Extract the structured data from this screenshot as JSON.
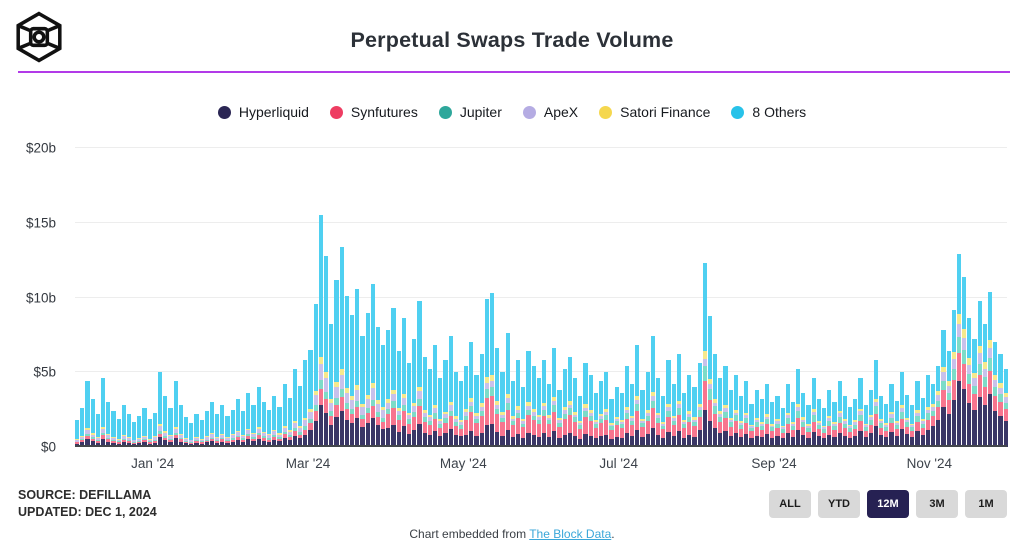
{
  "header": {
    "title": "Perpetual Swaps Trade Volume",
    "brand_logo": "the-block-cube-logo",
    "divider_color": "#b23ae8"
  },
  "legend": [
    {
      "key": "hyperliquid",
      "label": "Hyperliquid",
      "color": "#2b2654",
      "bar_color": "#3a3666"
    },
    {
      "key": "synfutures",
      "label": "Synfutures",
      "color": "#ee3d62",
      "bar_color": "#f7758e"
    },
    {
      "key": "jupiter",
      "label": "Jupiter",
      "color": "#2ea79b",
      "bar_color": "#7ddcc8"
    },
    {
      "key": "apex",
      "label": "ApeX",
      "color": "#b5ace3",
      "bar_color": "#c8c1eb"
    },
    {
      "key": "satori",
      "label": "Satori Finance",
      "color": "#f5d74e",
      "bar_color": "#f6e98c"
    },
    {
      "key": "others",
      "label": "8 Others",
      "color": "#28c2e9",
      "bar_color": "#4fd0f1"
    }
  ],
  "chart_data": {
    "type": "bar",
    "stacked": true,
    "title": "Perpetual Swaps Trade Volume",
    "unit": "USD billions per day",
    "granularity": "daily (approximated here as 15 bars per month)",
    "x_range": "Dec 2023 - Nov 2024",
    "ylim": [
      0,
      20
    ],
    "grid": "horizontal",
    "legend_position": "top-center",
    "stack_order_bottom_to_top": [
      "hyperliquid",
      "synfutures",
      "jupiter",
      "apex",
      "satori",
      "others"
    ],
    "y_ticks": [
      {
        "label": "$0",
        "value": 0
      },
      {
        "label": "$5b",
        "value": 5
      },
      {
        "label": "$10b",
        "value": 10
      },
      {
        "label": "$15b",
        "value": 15
      },
      {
        "label": "$20b",
        "value": 20
      }
    ],
    "x_ticks": [
      {
        "label": "Jan '24",
        "bar": 15
      },
      {
        "label": "Mar '24",
        "bar": 45
      },
      {
        "label": "May '24",
        "bar": 75
      },
      {
        "label": "Jul '24",
        "bar": 105
      },
      {
        "label": "Sep '24",
        "bar": 135
      },
      {
        "label": "Nov '24",
        "bar": 165
      }
    ],
    "months": [
      {
        "label": "Dec '23",
        "fractions": {
          "hyperliquid": 0.12,
          "synfutures": 0.05,
          "jupiter": 0.03,
          "apex": 0.06,
          "satori": 0.03
        },
        "totals": [
          1.8,
          2.6,
          4.4,
          3.2,
          2.2,
          4.6,
          3.0,
          2.4,
          1.9,
          2.8,
          2.2,
          1.7,
          2.1,
          2.6,
          1.9
        ]
      },
      {
        "label": "Jan '24",
        "fractions": {
          "hyperliquid": 0.13,
          "synfutures": 0.05,
          "jupiter": 0.03,
          "apex": 0.07,
          "satori": 0.03
        },
        "totals": [
          2.3,
          5.0,
          3.4,
          2.6,
          4.4,
          2.8,
          2.0,
          1.6,
          2.2,
          1.8,
          2.4,
          3.0,
          2.2,
          2.8,
          2.1
        ]
      },
      {
        "label": "Feb '24",
        "fractions": {
          "hyperliquid": 0.14,
          "synfutures": 0.06,
          "jupiter": 0.04,
          "apex": 0.07,
          "satori": 0.03
        },
        "totals": [
          2.5,
          3.2,
          2.4,
          3.6,
          2.8,
          4.0,
          3.0,
          2.5,
          3.4,
          2.7,
          4.2,
          3.3,
          5.2,
          4.1,
          5.8
        ]
      },
      {
        "label": "Mar '24",
        "fractions": {
          "hyperliquid": 0.18,
          "synfutures": 0.07,
          "jupiter": 0.04,
          "apex": 0.07,
          "satori": 0.03
        },
        "totals": [
          6.5,
          9.6,
          15.5,
          12.8,
          8.2,
          11.2,
          13.4,
          10.1,
          8.8,
          10.6,
          7.4,
          9.0,
          10.9,
          8.0,
          6.8
        ]
      },
      {
        "label": "Apr '24",
        "fractions": {
          "hyperliquid": 0.16,
          "synfutures": 0.12,
          "jupiter": 0.05,
          "apex": 0.05,
          "satori": 0.03
        },
        "totals": [
          7.8,
          9.3,
          6.4,
          8.6,
          5.6,
          7.2,
          9.8,
          6.0,
          5.2,
          6.8,
          4.6,
          5.8,
          7.4,
          5.0,
          4.4
        ]
      },
      {
        "label": "May '24",
        "fractions": {
          "hyperliquid": 0.15,
          "synfutures": 0.18,
          "jupiter": 0.06,
          "apex": 0.04,
          "satori": 0.04
        },
        "totals": [
          5.4,
          7.0,
          4.8,
          6.2,
          9.9,
          10.3,
          6.6,
          5.0,
          7.6,
          4.4,
          5.8,
          4.0,
          6.4,
          5.4,
          4.6
        ]
      },
      {
        "label": "Jun '24",
        "fractions": {
          "hyperliquid": 0.16,
          "synfutures": 0.2,
          "jupiter": 0.07,
          "apex": 0.04,
          "satori": 0.04
        },
        "totals": [
          5.8,
          4.2,
          6.6,
          3.8,
          5.2,
          6.0,
          4.6,
          3.4,
          5.6,
          4.8,
          3.6,
          4.4,
          5.0,
          3.2,
          4.0
        ]
      },
      {
        "label": "Jul '24",
        "fractions": {
          "hyperliquid": 0.17,
          "synfutures": 0.18,
          "jupiter": 0.07,
          "apex": 0.04,
          "satori": 0.04
        },
        "totals": [
          3.6,
          5.4,
          4.2,
          6.8,
          3.8,
          5.0,
          7.4,
          4.6,
          3.4,
          5.8,
          4.2,
          6.2,
          3.6,
          4.8,
          4.0
        ]
      },
      {
        "label": "Aug '24",
        "fractions": {
          "hyperliquid": 0.2,
          "synfutures": 0.16,
          "jupiter": 0.08,
          "apex": 0.04,
          "satori": 0.04
        },
        "totals": [
          5.6,
          12.3,
          8.8,
          6.2,
          4.6,
          5.4,
          3.8,
          4.8,
          3.4,
          4.4,
          2.9,
          3.8,
          3.2,
          4.2,
          3.0
        ]
      },
      {
        "label": "Sep '24",
        "fractions": {
          "hyperliquid": 0.22,
          "synfutures": 0.15,
          "jupiter": 0.09,
          "apex": 0.05,
          "satori": 0.04
        },
        "totals": [
          3.4,
          2.6,
          4.2,
          3.0,
          5.2,
          3.6,
          2.8,
          4.6,
          3.2,
          2.6,
          3.8,
          3.0,
          4.4,
          3.4,
          2.7
        ]
      },
      {
        "label": "Oct '24",
        "fractions": {
          "hyperliquid": 0.24,
          "synfutures": 0.14,
          "jupiter": 0.09,
          "apex": 0.05,
          "satori": 0.04
        },
        "totals": [
          3.2,
          4.6,
          2.8,
          3.8,
          5.8,
          3.4,
          2.9,
          4.2,
          3.1,
          5.0,
          3.5,
          2.8,
          4.4,
          3.3,
          4.8
        ]
      },
      {
        "label": "Nov '24",
        "fractions": {
          "hyperliquid": 0.34,
          "synfutures": 0.15,
          "jupiter": 0.08,
          "apex": 0.07,
          "satori": 0.05
        },
        "totals": [
          4.2,
          5.4,
          7.8,
          6.4,
          9.2,
          12.9,
          11.4,
          8.6,
          7.2,
          9.8,
          8.2,
          10.4,
          7.0,
          6.2,
          5.2
        ]
      }
    ]
  },
  "footer": {
    "source_line1": "SOURCE: DEFILLAMA",
    "source_line2": "UPDATED: DEC 1, 2024",
    "range_buttons": [
      {
        "label": "ALL",
        "active": false
      },
      {
        "label": "YTD",
        "active": false
      },
      {
        "label": "12M",
        "active": true
      },
      {
        "label": "3M",
        "active": false
      },
      {
        "label": "1M",
        "active": false
      }
    ],
    "embed_prefix": "Chart embedded from ",
    "embed_link": "The Block Data",
    "embed_suffix": "."
  }
}
